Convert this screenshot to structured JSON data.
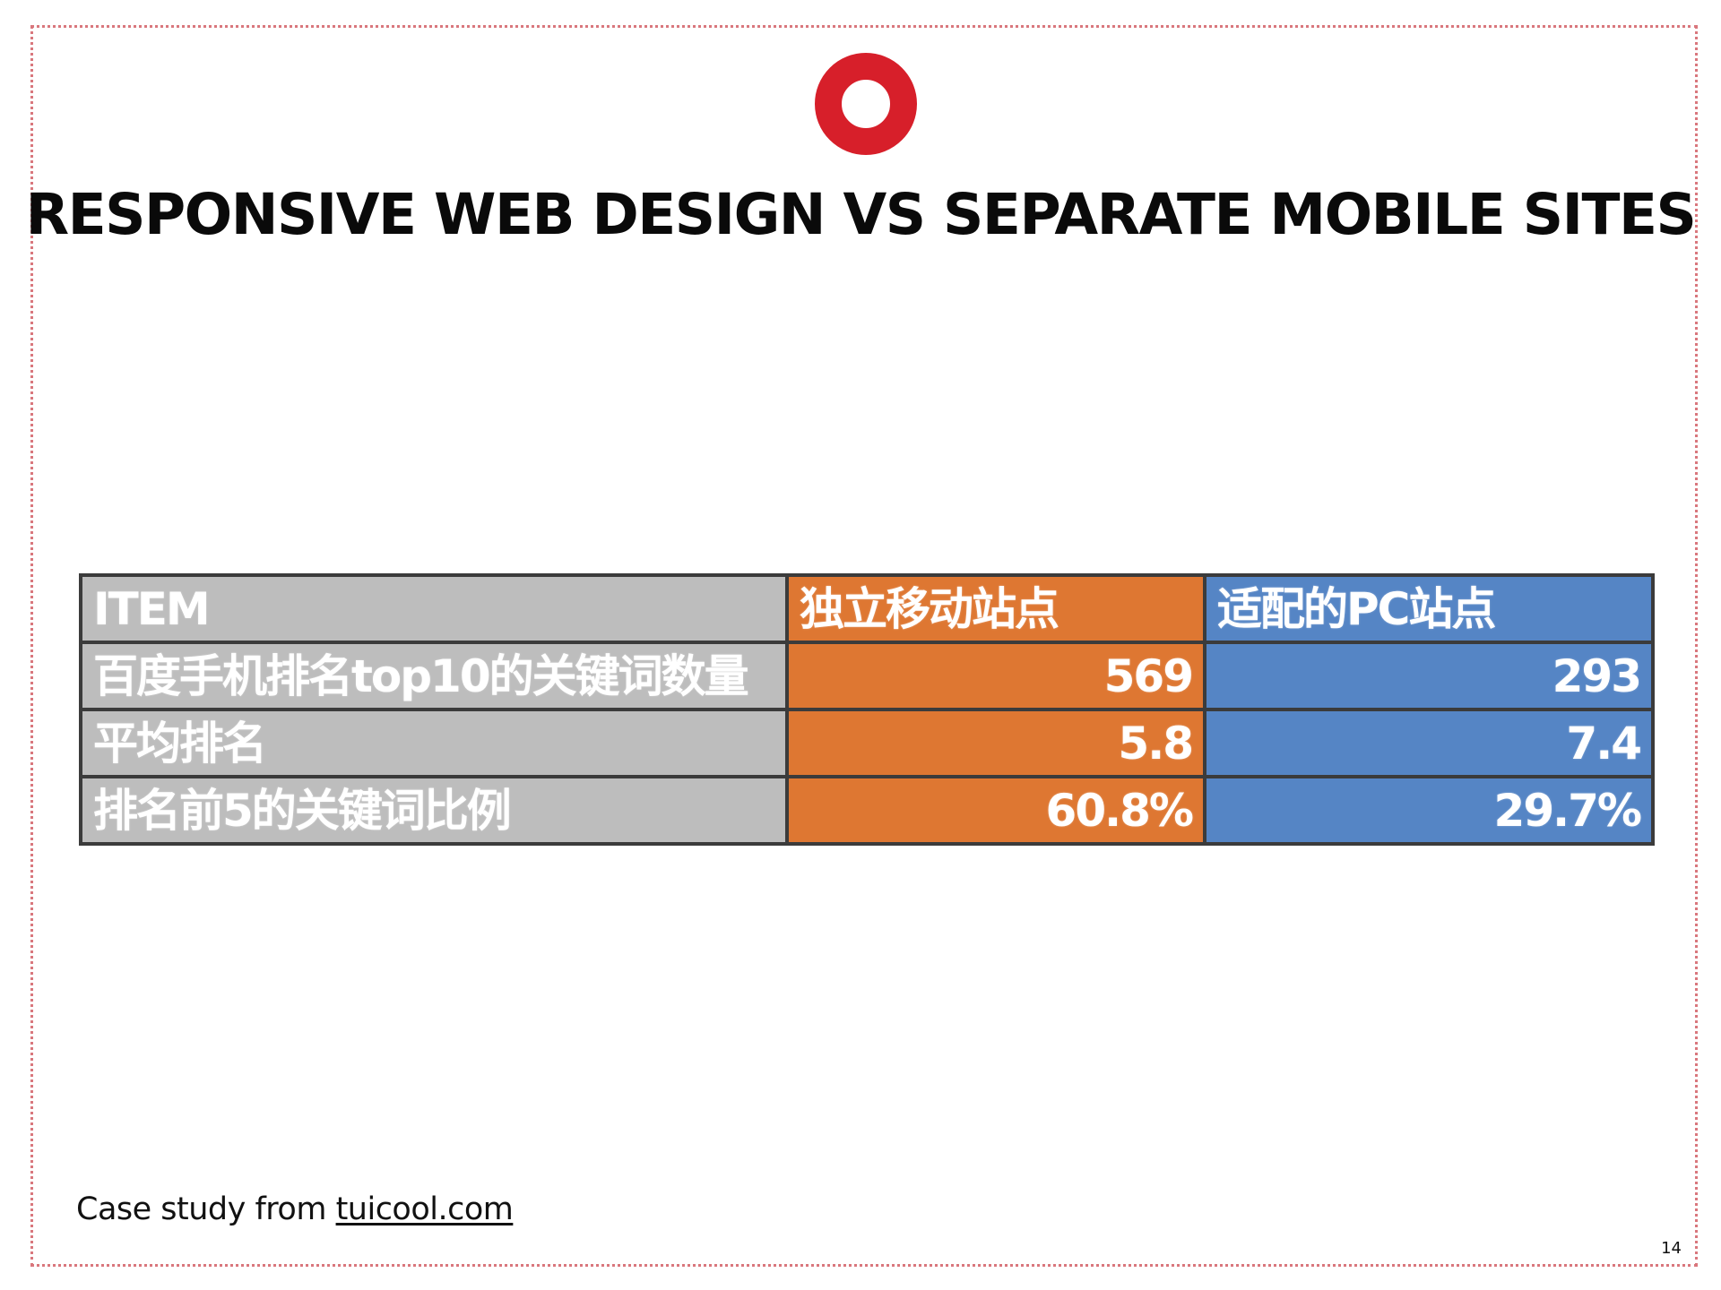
{
  "slide": {
    "title": "RESPONSIVE WEB DESIGN VS SEPARATE MOBILE SITES",
    "logo_icon": "red-ring-logo",
    "accent_color": "#d71f2a",
    "caption_prefix": "Case study from ",
    "caption_link": "tuicool.com",
    "page_number": "14"
  },
  "table": {
    "headers": [
      "ITEM",
      "独立移动站点",
      "适配的PC站点"
    ],
    "rows": [
      [
        "百度手机排名top10的关键词数量",
        "569",
        "293"
      ],
      [
        "平均排名",
        "5.8",
        "7.4"
      ],
      [
        "排名前5的关键词比例",
        "60.8%",
        "29.7%"
      ]
    ],
    "colors": {
      "item": "#bdbdbd",
      "mobile": "#de7732",
      "pc": "#5585c5"
    }
  }
}
